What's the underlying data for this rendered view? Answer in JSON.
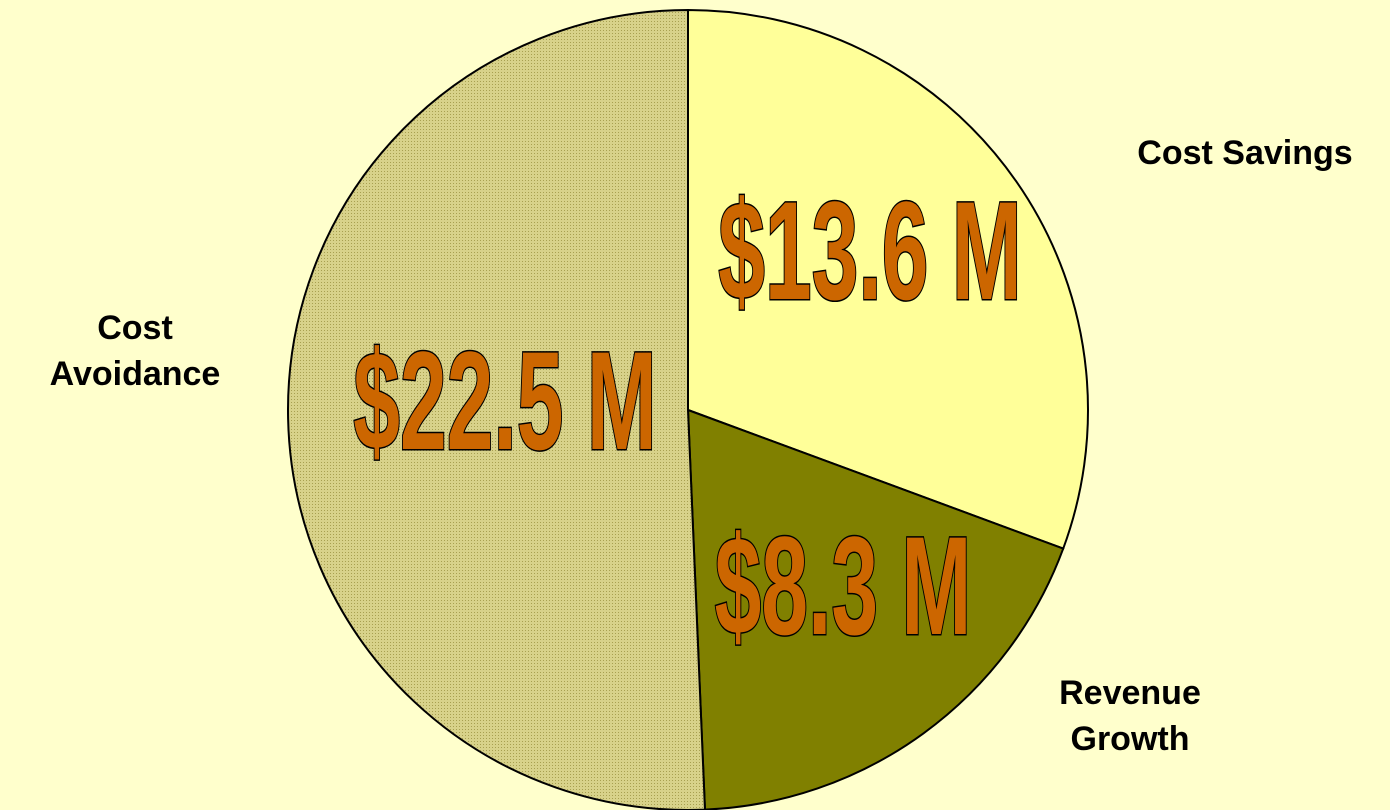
{
  "chart_data": {
    "type": "pie",
    "categories": [
      "Cost Savings",
      "Revenue Growth",
      "Cost Avoidance"
    ],
    "values": [
      13.6,
      8.3,
      22.5
    ],
    "value_labels": [
      "$13.6 M",
      "$8.3 M",
      "$22.5 M"
    ],
    "colors": [
      "#ffff99",
      "#808000",
      "#c9c274"
    ]
  }
}
